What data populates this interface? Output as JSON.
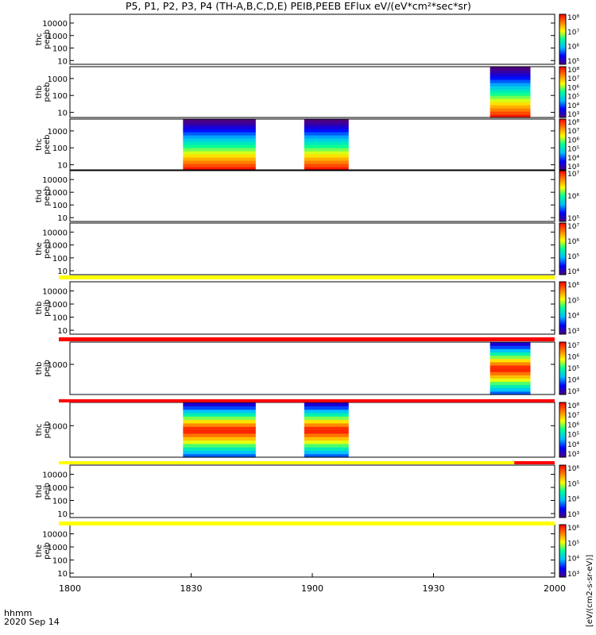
{
  "title": "P5, P1, P2, P3, P4 (TH-A,B,C,D,E) PEIB,PEEB EFlux eV/(eV*cm²*sec*sr)",
  "time_axis_label": "hhmm",
  "date_label": "2020 Sep 14",
  "colorbar_side_label": "[eV/(cm2-s-sr-eV)]",
  "colors": {
    "spectrogram_scale": [
      "#4b0082",
      "#0000ff",
      "#00bfff",
      "#00ff99",
      "#ffff00",
      "#ff8000",
      "#ff0000"
    ],
    "flag_yellow": "#ffff00",
    "flag_red": "#ff0000"
  },
  "chart_data": {
    "type": "heatmap",
    "x_axis": {
      "type": "time",
      "range": [
        "1800",
        "2000"
      ],
      "ticks": [
        "1800",
        "1830",
        "1900",
        "1930",
        "2000"
      ]
    },
    "panels": [
      {
        "id": "thc-peeb",
        "ylabel": [
          "thc",
          "peeb"
        ],
        "yscale": "log",
        "ylim": [
          5,
          50000
        ],
        "yticks": [
          "10000",
          "1000",
          "100",
          "10"
        ],
        "cbar": {
          "ticks": [
            "10⁸",
            "10⁷",
            "10⁶",
            "10⁵"
          ],
          "range": [
            "1e5",
            "1e8"
          ]
        },
        "data_intervals": []
      },
      {
        "id": "thb-peeb",
        "ylabel": [
          "thb",
          "peeb"
        ],
        "yscale": "log",
        "ylim": [
          5,
          5000
        ],
        "yticks": [
          "1000",
          "100",
          "10"
        ],
        "cbar": {
          "ticks": [
            "10⁸",
            "10⁷",
            "10⁶",
            "10⁵",
            "10⁴",
            "10³"
          ],
          "range": [
            "1e3",
            "1e8"
          ]
        },
        "data_intervals": [
          {
            "start": "1944",
            "end": "1954",
            "profile": "eesa"
          }
        ]
      },
      {
        "id": "thc-peeb",
        "ylabel": [
          "thc",
          "peeb"
        ],
        "yscale": "log",
        "ylim": [
          5,
          5000
        ],
        "yticks": [
          "1000",
          "100",
          "10"
        ],
        "cbar": {
          "ticks": [
            "10⁸",
            "10⁷",
            "10⁶",
            "10⁵",
            "10⁴",
            "10³"
          ],
          "range": [
            "1e3",
            "1e8"
          ]
        },
        "data_intervals": [
          {
            "start": "1828",
            "end": "1846",
            "profile": "eesa"
          },
          {
            "start": "1858",
            "end": "1909",
            "profile": "eesa"
          }
        ]
      },
      {
        "id": "thd-peeb",
        "ylabel": [
          "thd",
          "peeb"
        ],
        "yscale": "log",
        "ylim": [
          5,
          50000
        ],
        "yticks": [
          "10000",
          "1000",
          "100",
          "10"
        ],
        "cbar": {
          "ticks": [
            "10⁷",
            "10⁶",
            "10⁵"
          ],
          "range": [
            "1e4",
            "1e8"
          ]
        },
        "data_intervals": []
      },
      {
        "id": "the-peeb",
        "ylabel": [
          "the",
          "peeb"
        ],
        "yscale": "log",
        "ylim": [
          5,
          50000
        ],
        "yticks": [
          "10000",
          "1000",
          "100",
          "10"
        ],
        "cbar": {
          "ticks": [
            "10⁷",
            "10⁶",
            "10⁵",
            "10⁴"
          ],
          "range": [
            "1e4",
            "1e8"
          ]
        },
        "data_intervals": []
      },
      {
        "id": "thb-peib",
        "ylabel": [
          "thb",
          "peib"
        ],
        "yscale": "log",
        "ylim": [
          5,
          50000
        ],
        "yticks": [
          "10000",
          "1000",
          "100",
          "10"
        ],
        "cbar": {
          "ticks": [
            "10⁶",
            "10⁵",
            "10⁴",
            "10³"
          ],
          "range": [
            "1e3",
            "1e7"
          ]
        },
        "data_intervals": []
      },
      {
        "id": "thb-peib",
        "ylabel": [
          "thb",
          "peib"
        ],
        "yscale": "log",
        "ylim": [
          5,
          50000
        ],
        "yticks": [
          "1000"
        ],
        "cbar": {
          "ticks": [
            "10⁷",
            "10⁶",
            "10⁵",
            "10⁴",
            "10³"
          ],
          "range": [
            "1e3",
            "1e8"
          ]
        },
        "data_intervals": [
          {
            "start": "1944",
            "end": "1954",
            "profile": "iesa"
          }
        ]
      },
      {
        "id": "thc-peib",
        "ylabel": [
          "thc",
          "peib"
        ],
        "yscale": "log",
        "ylim": [
          5,
          50000
        ],
        "yticks": [
          "1000"
        ],
        "cbar": {
          "ticks": [
            "10⁸",
            "10⁷",
            "10⁶",
            "10⁵",
            "10⁴",
            "10³"
          ],
          "range": [
            "1e3",
            "1e8"
          ]
        },
        "data_intervals": [
          {
            "start": "1828",
            "end": "1846",
            "profile": "iesa"
          },
          {
            "start": "1858",
            "end": "1909",
            "profile": "iesa"
          }
        ]
      },
      {
        "id": "thd-peib",
        "ylabel": [
          "thd",
          "peib"
        ],
        "yscale": "log",
        "ylim": [
          5,
          50000
        ],
        "yticks": [
          "10000",
          "1000",
          "100",
          "10"
        ],
        "cbar": {
          "ticks": [
            "10⁶",
            "10⁵",
            "10⁴",
            "10³"
          ],
          "range": [
            "1e3",
            "1e7"
          ]
        },
        "data_intervals": []
      },
      {
        "id": "the-peib",
        "ylabel": [
          "the",
          "peib"
        ],
        "yscale": "log",
        "ylim": [
          5,
          50000
        ],
        "yticks": [
          "10000",
          "1000",
          "100",
          "10"
        ],
        "cbar": {
          "ticks": [
            "10⁶",
            "10⁵",
            "10⁴",
            "10³"
          ],
          "range": [
            "1e3",
            "1e7"
          ]
        },
        "data_intervals": []
      }
    ],
    "flag_bars": [
      {
        "after_panel": 5,
        "segments": [
          {
            "start": "1800",
            "end": "2000",
            "color": "yellow"
          }
        ]
      },
      {
        "after_panel": 6,
        "segments": [
          {
            "start": "1800",
            "end": "2000",
            "color": "red"
          }
        ]
      },
      {
        "after_panel": 7,
        "segments": [
          {
            "start": "1800",
            "end": "2000",
            "color": "red"
          }
        ]
      },
      {
        "after_panel": 8,
        "segments": [
          {
            "start": "1800",
            "end": "1950",
            "color": "yellow"
          },
          {
            "start": "1950",
            "end": "2000",
            "color": "red"
          }
        ]
      },
      {
        "after_panel": 9,
        "segments": [
          {
            "start": "1800",
            "end": "2000",
            "color": "yellow"
          }
        ]
      }
    ]
  }
}
